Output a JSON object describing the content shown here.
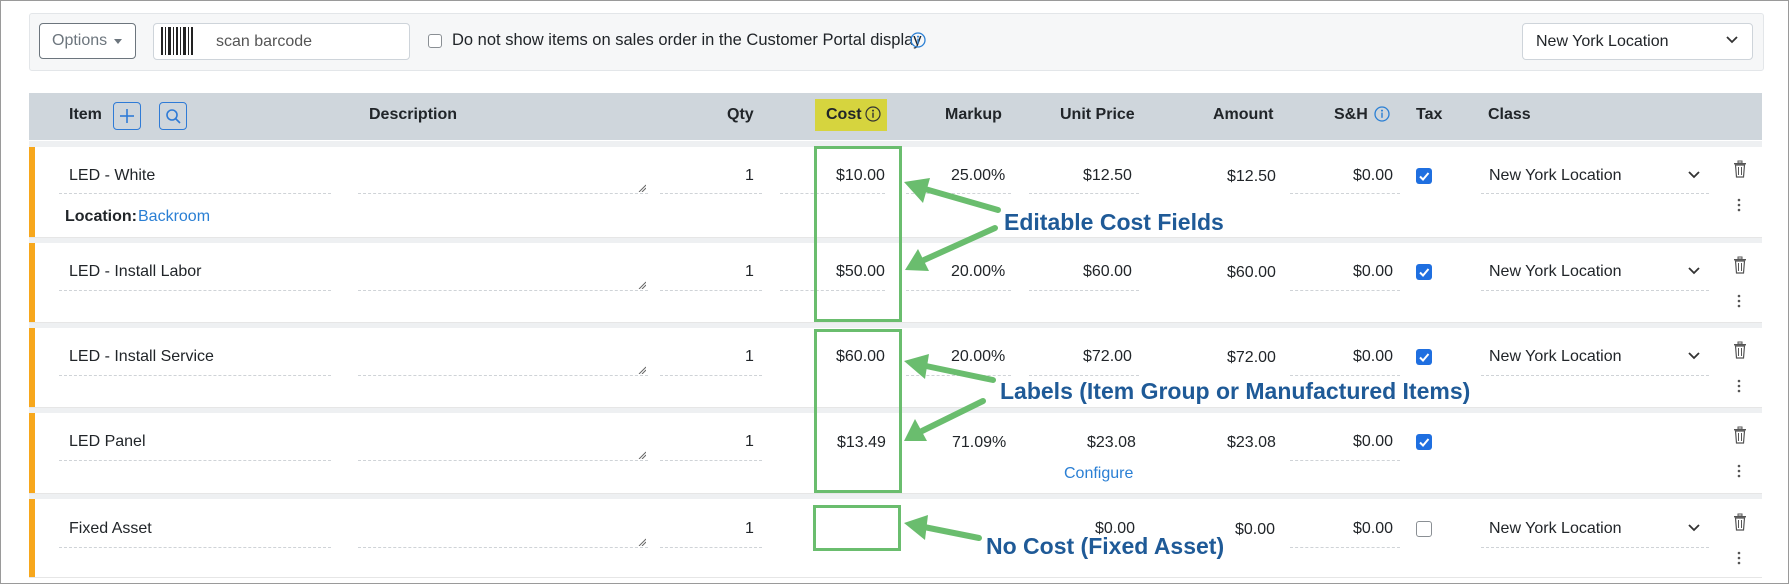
{
  "toolbar": {
    "options_label": "Options",
    "barcode_placeholder": "scan barcode",
    "portal_checkbox_label": "Do not show items on sales order in the Customer Portal display",
    "location_select_value": "New York Location"
  },
  "table": {
    "headers": {
      "item": "Item",
      "description": "Description",
      "qty": "Qty",
      "cost": "Cost",
      "markup": "Markup",
      "unit_price": "Unit Price",
      "amount": "Amount",
      "sh": "S&H",
      "tax": "Tax",
      "class": "Class"
    },
    "rows": [
      {
        "item": "LED - White",
        "qty": "1",
        "cost": "$10.00",
        "markup": "25.00%",
        "unit_price": "$12.50",
        "amount": "$12.50",
        "sh": "$0.00",
        "tax": true,
        "class": "New York Location",
        "location_label": "Location:",
        "location_value": "Backroom"
      },
      {
        "item": "LED - Install Labor",
        "qty": "1",
        "cost": "$50.00",
        "markup": "20.00%",
        "unit_price": "$60.00",
        "amount": "$60.00",
        "sh": "$0.00",
        "tax": true,
        "class": "New York Location"
      },
      {
        "item": "LED - Install Service",
        "qty": "1",
        "cost": "$60.00",
        "markup": "20.00%",
        "unit_price": "$72.00",
        "amount": "$72.00",
        "sh": "$0.00",
        "tax": true,
        "class": "New York Location"
      },
      {
        "item": "LED Panel",
        "qty": "1",
        "cost": "$13.49",
        "markup": "71.09%",
        "unit_price": "$23.08",
        "amount": "$23.08",
        "sh": "$0.00",
        "tax": true,
        "class": "",
        "configure_link": "Configure"
      },
      {
        "item": "Fixed Asset",
        "qty": "1",
        "cost": "",
        "markup": "",
        "unit_price": "$0.00",
        "amount": "$0.00",
        "sh": "$0.00",
        "tax": false,
        "class": "New York Location"
      }
    ]
  },
  "annotations": {
    "editable": "Editable Cost Fields",
    "labels": "Labels (Item Group or Manufactured Items)",
    "no_cost": "No Cost (Fixed Asset)"
  },
  "colors": {
    "accent_blue": "#2a7fd4",
    "row_marker_orange": "#f7a71c",
    "cost_highlight": "#d6d43e",
    "annotation_green": "#6abd6e",
    "annotation_text": "#1f5a97"
  },
  "icons": [
    "caret-down-icon",
    "barcode-icon",
    "info-icon",
    "chevron-down-icon",
    "plus-icon",
    "search-icon",
    "trash-icon",
    "kebab-icon",
    "checkbox-checked-icon",
    "resize-handle-icon",
    "arrow-icon"
  ]
}
